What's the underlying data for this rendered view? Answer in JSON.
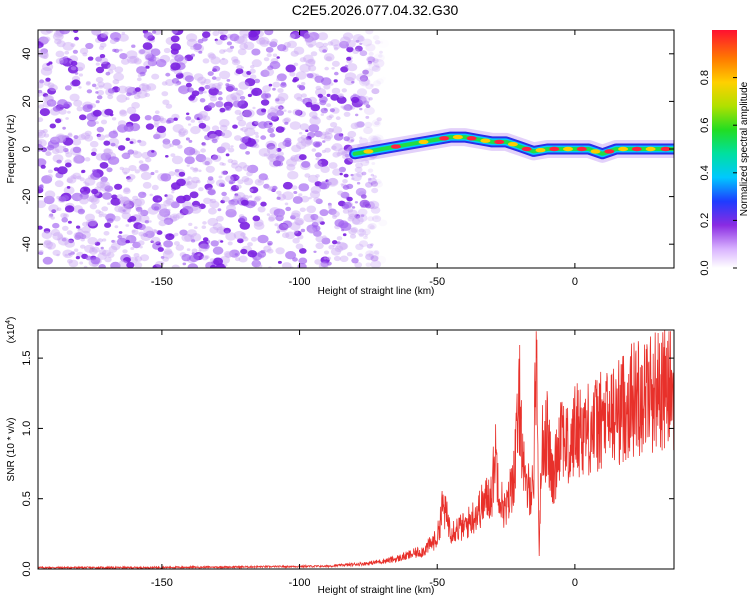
{
  "title": "C2E5.2026.077.04.32.G30",
  "chart_data": [
    {
      "type": "heatmap",
      "name": "spectrogram",
      "xlabel": "Height of straight line (km)",
      "ylabel": "Frequency (Hz)",
      "xlim": [
        -195,
        36
      ],
      "ylim": [
        -50,
        50
      ],
      "xticks": [
        -150,
        -100,
        -50,
        0
      ],
      "yticks": [
        -40,
        -20,
        0,
        20,
        40
      ],
      "noise_region_x": [
        -195,
        -80
      ],
      "signal_track": {
        "x": [
          -80,
          -70,
          -60,
          -50,
          -45,
          -40,
          -35,
          -30,
          -25,
          -20,
          -15,
          -10,
          -5,
          0,
          5,
          10,
          15,
          20,
          25,
          30,
          36
        ],
        "freq": [
          -2,
          0,
          2,
          4,
          5,
          5,
          4,
          3,
          3,
          1,
          -1,
          0,
          0,
          0,
          0,
          -2,
          0,
          0,
          0,
          0,
          0
        ]
      },
      "colorbar": {
        "label": "Normalized spectral amplitude",
        "ticks": [
          "0.0",
          "0.2",
          "0.4",
          "0.6",
          "0.8"
        ],
        "range": [
          0,
          1
        ]
      }
    },
    {
      "type": "line",
      "name": "snr",
      "xlabel": "Height of straight line (km)",
      "ylabel": "SNR (10 * v/v)",
      "scale_label": "(x10",
      "scale_exponent": "4",
      "xlim": [
        -195,
        36
      ],
      "ylim": [
        0,
        1.7
      ],
      "xticks": [
        -150,
        -100,
        -50,
        0
      ],
      "yticks": [
        "0.0",
        "0.5",
        "1.0",
        "1.5"
      ],
      "color": "#e8302a",
      "x": [
        -195,
        -160,
        -120,
        -90,
        -75,
        -65,
        -60,
        -55,
        -50,
        -48,
        -45,
        -40,
        -35,
        -30,
        -29,
        -27,
        -25,
        -22,
        -20,
        -18,
        -15,
        -14,
        -13,
        -12,
        -10,
        -8,
        -5,
        -2,
        0,
        5,
        10,
        15,
        20,
        25,
        30,
        36
      ],
      "y": [
        0.01,
        0.01,
        0.015,
        0.02,
        0.04,
        0.07,
        0.1,
        0.13,
        0.22,
        0.45,
        0.28,
        0.3,
        0.42,
        0.55,
        0.85,
        0.5,
        0.4,
        0.7,
        1.2,
        0.55,
        0.6,
        1.7,
        0.1,
        0.9,
        0.95,
        0.6,
        1.05,
        0.8,
        1.0,
        1.0,
        1.05,
        1.1,
        1.2,
        1.25,
        1.28,
        1.28
      ]
    }
  ]
}
